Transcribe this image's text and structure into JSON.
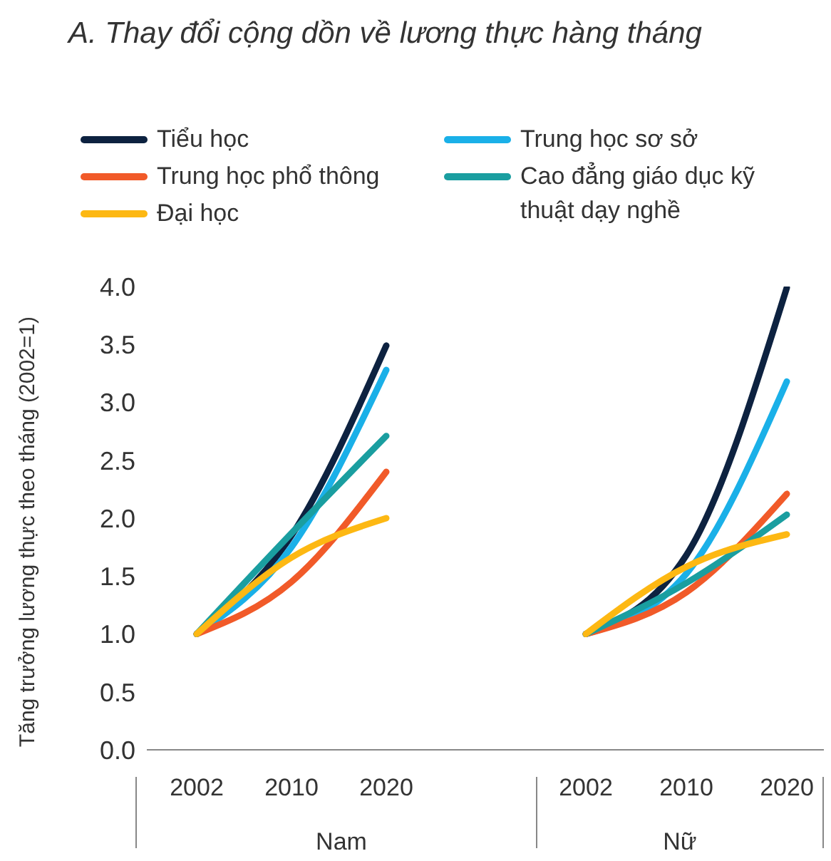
{
  "chart_data": [
    {
      "type": "line",
      "title": "A. Thay đổi cộng dồn về lương thực hàng tháng",
      "ylabel": "Tăng trưởng lương thực theo tháng (2002=1)",
      "xlabel": "Nam",
      "categories": [
        "2002",
        "2010",
        "2020"
      ],
      "ylim": [
        0,
        4
      ],
      "yticks": [
        {
          "value": 0,
          "label": "0.0"
        },
        {
          "value": 0.5,
          "label": "0.5"
        },
        {
          "value": 1,
          "label": "1.0"
        },
        {
          "value": 1.5,
          "label": "1.5"
        },
        {
          "value": 2,
          "label": "2.0"
        },
        {
          "value": 2.5,
          "label": "2.5"
        },
        {
          "value": 3,
          "label": "3.0"
        },
        {
          "value": 3.5,
          "label": "3.5"
        },
        {
          "value": 4,
          "label": "4.0"
        }
      ],
      "legend": "top",
      "marker": "none",
      "series": [
        {
          "name": "Tiểu học",
          "color": "#0d2240",
          "values": [
            1,
            1.85,
            3.49
          ]
        },
        {
          "name": "Trung học sơ sở",
          "color": "#1ab0e8",
          "values": [
            1,
            1.75,
            3.28
          ]
        },
        {
          "name": "Trung học phổ thông",
          "color": "#f15a29",
          "values": [
            1,
            1.45,
            2.4
          ]
        },
        {
          "name": "Cao đẳng giáo dục kỹ thuật dạy nghề",
          "color": "#1a9ea0",
          "values": [
            1,
            1.87,
            2.71
          ]
        },
        {
          "name": "Đại học",
          "color": "#fdb813",
          "values": [
            1,
            1.66,
            2.0
          ]
        }
      ]
    },
    {
      "type": "line",
      "xlabel": "Nữ",
      "categories": [
        "2002",
        "2010",
        "2020"
      ],
      "ylim": [
        0,
        4
      ],
      "tick_labels": "x",
      "marker": "none",
      "series": [
        {
          "color": "#0d2240",
          "values": [
            1,
            1.68,
            3.99
          ]
        },
        {
          "color": "#1ab0e8",
          "values": [
            1,
            1.52,
            3.18
          ]
        },
        {
          "color": "#f15a29",
          "values": [
            1,
            1.36,
            2.21
          ]
        },
        {
          "color": "#1a9ea0",
          "values": [
            1,
            1.44,
            2.03
          ]
        },
        {
          "color": "#fdb813",
          "values": [
            1,
            1.58,
            1.86
          ]
        }
      ]
    }
  ]
}
